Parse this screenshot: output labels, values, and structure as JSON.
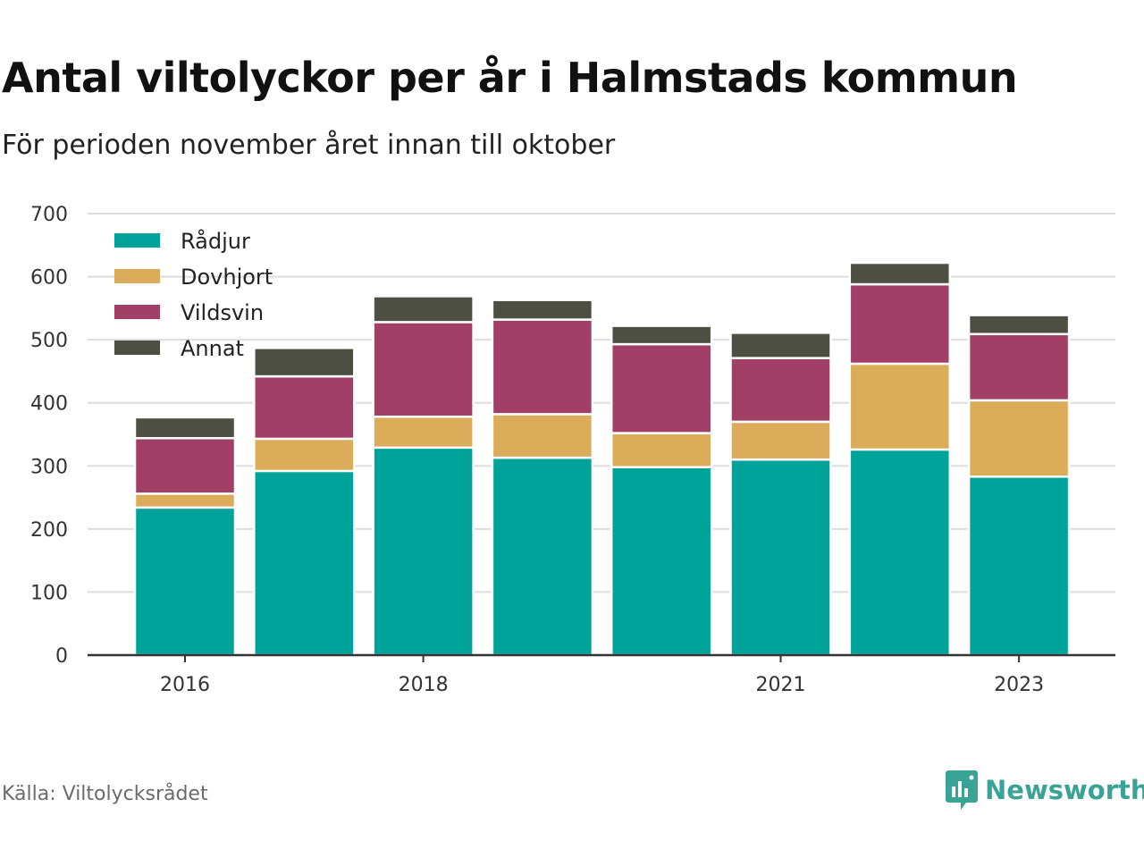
{
  "title": "Antal viltolyckor per år i Halmstads kommun",
  "subtitle": "För perioden november året innan till oktober",
  "source": "Källa: Viltolycksrådet",
  "brand": {
    "name": "Newsworthy",
    "icon": "newsworthy-logo-icon",
    "color": "#39a396"
  },
  "chart_data": {
    "type": "bar",
    "stacked": true,
    "categories": [
      "2016",
      "2017",
      "2018",
      "2019",
      "2020",
      "2021",
      "2022",
      "2023"
    ],
    "x_tick_labels": [
      "2016",
      "",
      "2018",
      "",
      "",
      "2021",
      "",
      "2023"
    ],
    "ylim": [
      0,
      700
    ],
    "yticks": [
      0,
      100,
      200,
      300,
      400,
      500,
      600,
      700
    ],
    "grid": true,
    "legend_position": "top-left",
    "series": [
      {
        "name": "Rådjur",
        "color": "#00a39a",
        "values": [
          234,
          292,
          329,
          313,
          298,
          310,
          326,
          283
        ]
      },
      {
        "name": "Dovhjort",
        "color": "#dbac5a",
        "values": [
          22,
          51,
          49,
          69,
          54,
          60,
          136,
          121
        ]
      },
      {
        "name": "Vildsvin",
        "color": "#a23f66",
        "values": [
          88,
          99,
          150,
          150,
          141,
          101,
          126,
          105
        ]
      },
      {
        "name": "Annat",
        "color": "#4c4f42",
        "values": [
          33,
          45,
          41,
          31,
          29,
          40,
          34,
          30
        ]
      }
    ]
  }
}
